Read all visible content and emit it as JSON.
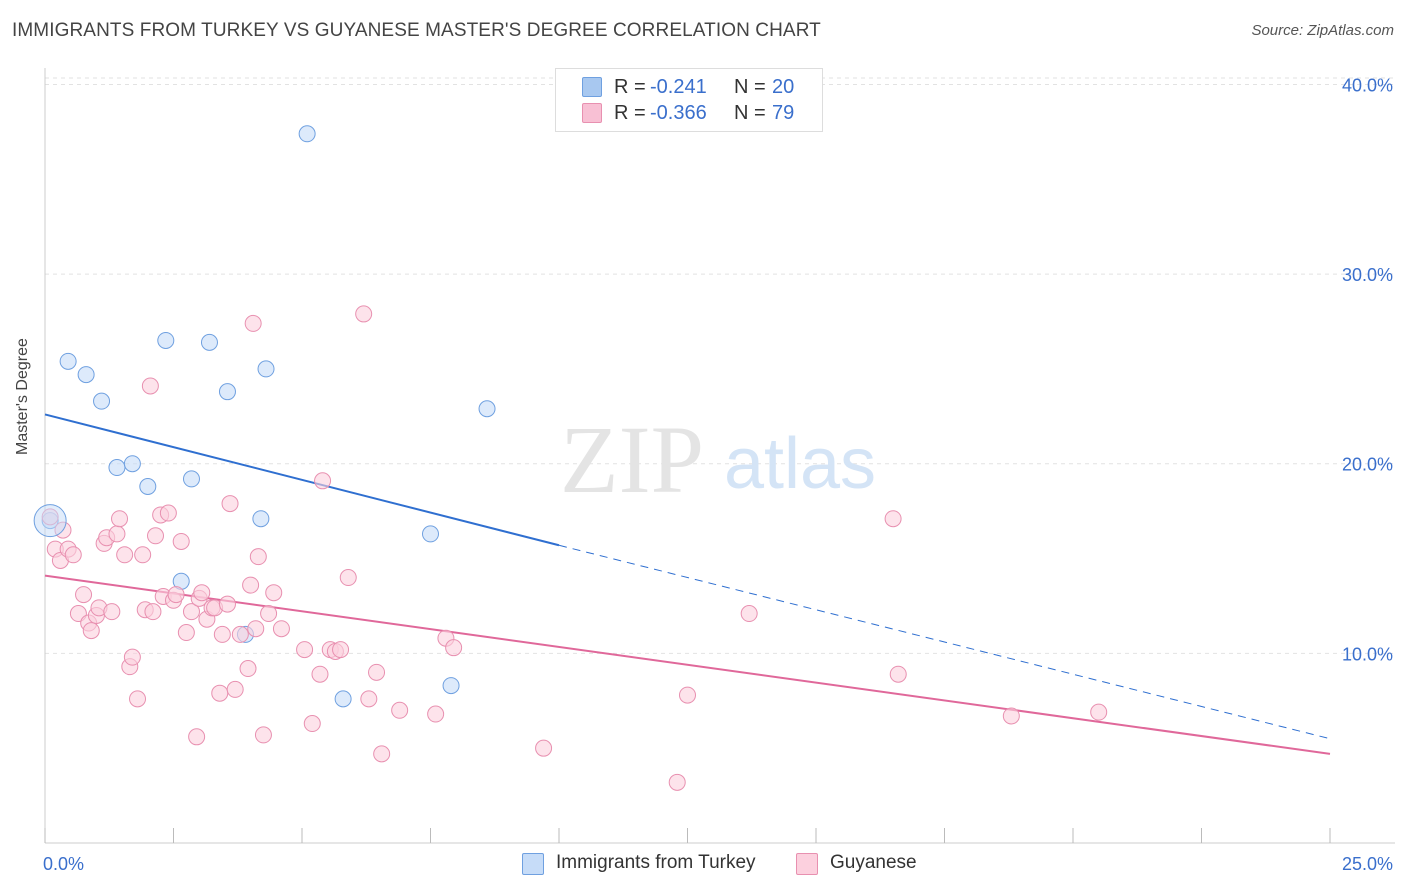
{
  "title": "IMMIGRANTS FROM TURKEY VS GUYANESE MASTER'S DEGREE CORRELATION CHART",
  "source": "Source: ZipAtlas.com",
  "watermark": {
    "zip": "ZIP",
    "atlas": "atlas"
  },
  "legend": {
    "rows": [
      {
        "r_label": "R =",
        "r_value": "-0.241",
        "n_label": "N =",
        "n_value": "20",
        "color": "#a8c8f0",
        "border": "#6fa0e0"
      },
      {
        "r_label": "R =",
        "r_value": "-0.366",
        "n_label": "N =",
        "n_value": "79",
        "color": "#f8c0d4",
        "border": "#e890b0"
      }
    ]
  },
  "bottom_legend": [
    {
      "label": "Immigrants from Turkey",
      "color": "#c6dcf8",
      "border": "#6fa0e0"
    },
    {
      "label": "Guyanese",
      "color": "#fcd0de",
      "border": "#e890b0"
    }
  ],
  "chart_data": {
    "type": "scatter",
    "title": "IMMIGRANTS FROM TURKEY VS GUYANESE MASTER'S DEGREE CORRELATION CHART",
    "xlabel": "",
    "ylabel": "Master's Degree",
    "xlim": [
      0,
      25
    ],
    "ylim": [
      0,
      40.5
    ],
    "x_tick_labels": [
      "0.0%",
      "25.0%"
    ],
    "y_ticks": [
      10,
      20,
      30,
      40
    ],
    "y_tick_labels": [
      "10.0%",
      "20.0%",
      "30.0%",
      "40.0%"
    ],
    "grid": true,
    "legend_position": "top-center",
    "series": [
      {
        "name": "Immigrants from Turkey",
        "color": "#6fa0e0",
        "fill": "#c6dcf8",
        "trend": {
          "x": [
            0,
            10
          ],
          "y": [
            22.6,
            15.7
          ],
          "dashed_extension_to": [
            25,
            5.5
          ],
          "color": "#2f6fd0"
        },
        "points": [
          [
            0.1,
            17.0
          ],
          [
            0.45,
            25.4
          ],
          [
            0.8,
            24.7
          ],
          [
            1.1,
            23.3
          ],
          [
            1.4,
            19.8
          ],
          [
            1.7,
            20.0
          ],
          [
            2.0,
            18.8
          ],
          [
            2.35,
            26.5
          ],
          [
            2.65,
            13.8
          ],
          [
            2.85,
            19.2
          ],
          [
            3.2,
            26.4
          ],
          [
            3.55,
            23.8
          ],
          [
            3.9,
            11.0
          ],
          [
            4.3,
            25.0
          ],
          [
            4.2,
            17.1
          ],
          [
            5.1,
            37.4
          ],
          [
            5.8,
            7.6
          ],
          [
            7.5,
            16.3
          ],
          [
            7.9,
            8.3
          ],
          [
            8.6,
            22.9
          ]
        ]
      },
      {
        "name": "Guyanese",
        "color": "#e890b0",
        "fill": "#fcd0de",
        "trend": {
          "x": [
            0,
            25
          ],
          "y": [
            14.1,
            4.7
          ],
          "color": "#e0689a"
        },
        "points": [
          [
            0.1,
            17.2
          ],
          [
            0.2,
            15.5
          ],
          [
            0.3,
            14.9
          ],
          [
            0.35,
            16.5
          ],
          [
            0.45,
            15.5
          ],
          [
            0.55,
            15.2
          ],
          [
            0.65,
            12.1
          ],
          [
            0.75,
            13.1
          ],
          [
            0.85,
            11.6
          ],
          [
            0.9,
            11.2
          ],
          [
            1.0,
            12.0
          ],
          [
            1.05,
            12.4
          ],
          [
            1.15,
            15.8
          ],
          [
            1.2,
            16.1
          ],
          [
            1.3,
            12.2
          ],
          [
            1.4,
            16.3
          ],
          [
            1.45,
            17.1
          ],
          [
            1.55,
            15.2
          ],
          [
            1.65,
            9.3
          ],
          [
            1.7,
            9.8
          ],
          [
            1.8,
            7.6
          ],
          [
            1.9,
            15.2
          ],
          [
            1.95,
            12.3
          ],
          [
            2.05,
            24.1
          ],
          [
            2.1,
            12.2
          ],
          [
            2.15,
            16.2
          ],
          [
            2.25,
            17.3
          ],
          [
            2.3,
            13.0
          ],
          [
            2.4,
            17.4
          ],
          [
            2.5,
            12.8
          ],
          [
            2.55,
            13.1
          ],
          [
            2.65,
            15.9
          ],
          [
            2.75,
            11.1
          ],
          [
            2.85,
            12.2
          ],
          [
            2.95,
            5.6
          ],
          [
            3.0,
            12.9
          ],
          [
            3.05,
            13.2
          ],
          [
            3.15,
            11.8
          ],
          [
            3.25,
            12.4
          ],
          [
            3.3,
            12.4
          ],
          [
            3.4,
            7.9
          ],
          [
            3.45,
            11.0
          ],
          [
            3.55,
            12.6
          ],
          [
            3.6,
            17.9
          ],
          [
            3.7,
            8.1
          ],
          [
            3.8,
            11.0
          ],
          [
            3.95,
            9.2
          ],
          [
            4.0,
            13.6
          ],
          [
            4.05,
            27.4
          ],
          [
            4.1,
            11.3
          ],
          [
            4.15,
            15.1
          ],
          [
            4.25,
            5.7
          ],
          [
            4.35,
            12.1
          ],
          [
            4.45,
            13.2
          ],
          [
            4.6,
            11.3
          ],
          [
            5.05,
            10.2
          ],
          [
            5.2,
            6.3
          ],
          [
            5.35,
            8.9
          ],
          [
            5.4,
            19.1
          ],
          [
            5.55,
            10.2
          ],
          [
            5.65,
            10.1
          ],
          [
            5.75,
            10.2
          ],
          [
            5.9,
            14.0
          ],
          [
            6.2,
            27.9
          ],
          [
            6.3,
            7.6
          ],
          [
            6.45,
            9.0
          ],
          [
            6.55,
            4.7
          ],
          [
            6.9,
            7.0
          ],
          [
            7.6,
            6.8
          ],
          [
            7.8,
            10.8
          ],
          [
            7.95,
            10.3
          ],
          [
            9.7,
            5.0
          ],
          [
            12.3,
            3.2
          ],
          [
            12.5,
            7.8
          ],
          [
            13.7,
            12.1
          ],
          [
            16.5,
            17.1
          ],
          [
            16.6,
            8.9
          ],
          [
            18.8,
            6.7
          ],
          [
            20.5,
            6.9
          ]
        ]
      }
    ]
  }
}
